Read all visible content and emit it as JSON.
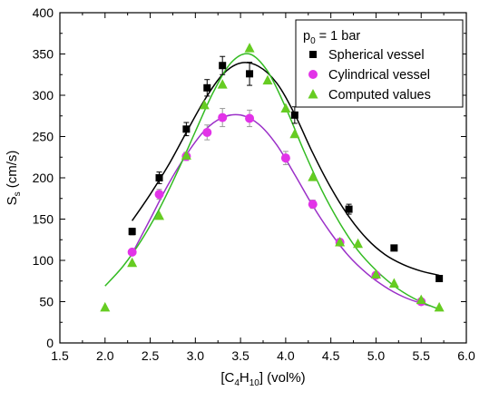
{
  "chart_data": {
    "type": "scatter",
    "title": "",
    "xlabel": {
      "prefix": "[C",
      "sub1": "4",
      "mid": "H",
      "sub2": "10",
      "suffix": "] (vol%)"
    },
    "ylabel": {
      "main": "S",
      "sub": "s",
      "suffix": " (cm/s)"
    },
    "xlim": [
      1.5,
      6.0
    ],
    "ylim": [
      0,
      400
    ],
    "xticks": [
      "1.5",
      "2.0",
      "2.5",
      "3.0",
      "3.5",
      "4.0",
      "4.5",
      "5.0",
      "5.5",
      "6.0"
    ],
    "yticks": [
      "0",
      "50",
      "100",
      "150",
      "200",
      "250",
      "300",
      "350",
      "400"
    ],
    "grid": false,
    "legend": {
      "position": "top-right",
      "header": {
        "main": "p",
        "sub": "0",
        "suffix": " = 1 bar"
      }
    },
    "series": [
      {
        "name": "Spherical vessel",
        "marker": "square",
        "color": "#000000",
        "x": [
          2.3,
          2.6,
          2.9,
          3.13,
          3.3,
          3.6,
          4.1,
          4.7,
          5.2,
          5.7
        ],
        "y": [
          135,
          200,
          259,
          309,
          336,
          326,
          276,
          162,
          115,
          78
        ],
        "err": [
          4,
          7,
          8,
          10,
          11,
          14,
          10,
          6,
          3,
          3
        ],
        "fit": [
          [
            2.3,
            148
          ],
          [
            2.5,
            180
          ],
          [
            2.7,
            215
          ],
          [
            2.9,
            255
          ],
          [
            3.1,
            294
          ],
          [
            3.3,
            325
          ],
          [
            3.5,
            339
          ],
          [
            3.7,
            335
          ],
          [
            3.9,
            315
          ],
          [
            4.1,
            277
          ],
          [
            4.3,
            230
          ],
          [
            4.5,
            188
          ],
          [
            4.7,
            153
          ],
          [
            4.9,
            126
          ],
          [
            5.1,
            107
          ],
          [
            5.3,
            95
          ],
          [
            5.5,
            87
          ],
          [
            5.7,
            82
          ]
        ]
      },
      {
        "name": "Cylindrical vessel",
        "marker": "circle",
        "color": "#e233e8",
        "x": [
          2.3,
          2.6,
          2.9,
          3.13,
          3.3,
          3.6,
          4.0,
          4.3,
          4.6,
          5.0,
          5.5
        ],
        "y": [
          110,
          180,
          226,
          255,
          273,
          272,
          224,
          168,
          122,
          82,
          50
        ],
        "err": [
          3,
          6,
          5,
          9,
          11,
          10,
          8,
          5,
          4,
          3,
          3
        ],
        "fit": [
          [
            2.3,
            108
          ],
          [
            2.5,
            150
          ],
          [
            2.7,
            192
          ],
          [
            2.9,
            228
          ],
          [
            3.1,
            257
          ],
          [
            3.3,
            273
          ],
          [
            3.5,
            276
          ],
          [
            3.7,
            265
          ],
          [
            3.9,
            240
          ],
          [
            4.1,
            204
          ],
          [
            4.3,
            166
          ],
          [
            4.5,
            133
          ],
          [
            4.7,
            105
          ],
          [
            4.9,
            84
          ],
          [
            5.1,
            68
          ],
          [
            5.3,
            56
          ],
          [
            5.5,
            48
          ],
          [
            5.6,
            45
          ]
        ]
      },
      {
        "name": "Computed values",
        "marker": "triangle",
        "color": "#66cc22",
        "x": [
          2.0,
          2.3,
          2.6,
          2.9,
          3.1,
          3.3,
          3.6,
          3.8,
          4.0,
          4.1,
          4.3,
          4.6,
          4.8,
          5.0,
          5.2,
          5.5,
          5.7
        ],
        "y": [
          43,
          97,
          154,
          227,
          288,
          313,
          357,
          318,
          284,
          253,
          201,
          122,
          120,
          83,
          72,
          52,
          43
        ],
        "fit": [
          [
            2.0,
            69
          ],
          [
            2.2,
            93
          ],
          [
            2.4,
            124
          ],
          [
            2.6,
            162
          ],
          [
            2.8,
            207
          ],
          [
            3.0,
            256
          ],
          [
            3.2,
            304
          ],
          [
            3.4,
            340
          ],
          [
            3.6,
            350
          ],
          [
            3.8,
            329
          ],
          [
            4.0,
            285
          ],
          [
            4.2,
            233
          ],
          [
            4.4,
            185
          ],
          [
            4.6,
            145
          ],
          [
            4.8,
            112
          ],
          [
            5.0,
            88
          ],
          [
            5.2,
            69
          ],
          [
            5.4,
            55
          ],
          [
            5.6,
            45
          ],
          [
            5.7,
            41
          ]
        ]
      }
    ],
    "colors": {
      "axis": "#000000",
      "background": "#ffffff"
    }
  }
}
